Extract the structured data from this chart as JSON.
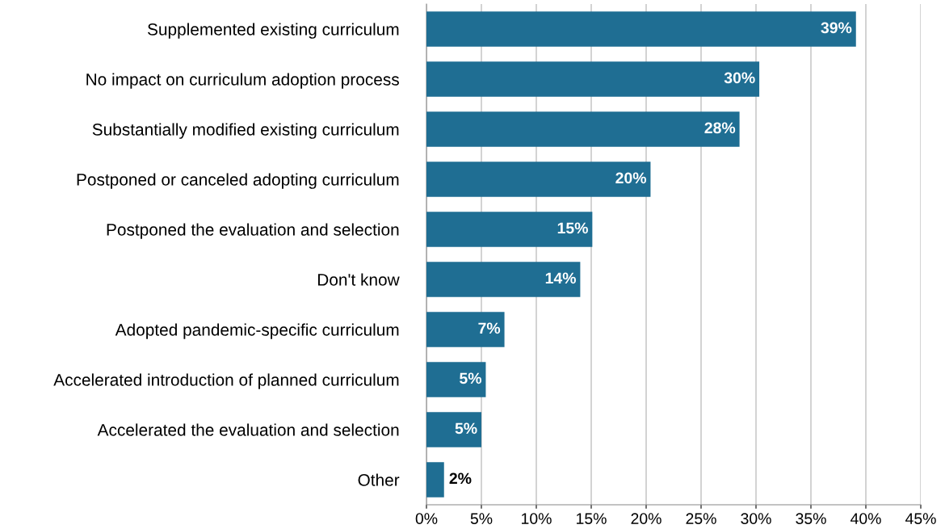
{
  "chart_data": {
    "type": "bar",
    "orientation": "horizontal",
    "categories": [
      "Supplemented existing curriculum",
      "No impact on curriculum adoption process",
      "Substantially modified existing curriculum",
      "Postponed or canceled adopting curriculum",
      "Postponed the evaluation and selection",
      "Don't know",
      "Adopted pandemic-specific curriculum",
      "Accelerated introduction of planned curriculum",
      "Accelerated the evaluation and selection",
      "Other"
    ],
    "values": [
      39.1,
      30.3,
      28.5,
      20.4,
      15.1,
      14.0,
      7.1,
      5.4,
      5.0,
      1.6
    ],
    "value_labels": [
      "39%",
      "30%",
      "28%",
      "20%",
      "15%",
      "14%",
      "7%",
      "5%",
      "5%",
      "2%"
    ],
    "color": "#1f6e93",
    "xlim": [
      0,
      45
    ],
    "xticks": [
      {
        "value": 0,
        "label": "0%"
      },
      {
        "value": 5,
        "label": "5%"
      },
      {
        "value": 10,
        "label": "10%"
      },
      {
        "value": 15,
        "label": "15%"
      },
      {
        "value": 20,
        "label": "20%"
      },
      {
        "value": 25,
        "label": "25%"
      },
      {
        "value": 30,
        "label": "30%"
      },
      {
        "value": 35,
        "label": "35%"
      },
      {
        "value": 40,
        "label": "40%"
      },
      {
        "value": 45,
        "label": "45%"
      }
    ],
    "grid": "x",
    "legend": false
  }
}
